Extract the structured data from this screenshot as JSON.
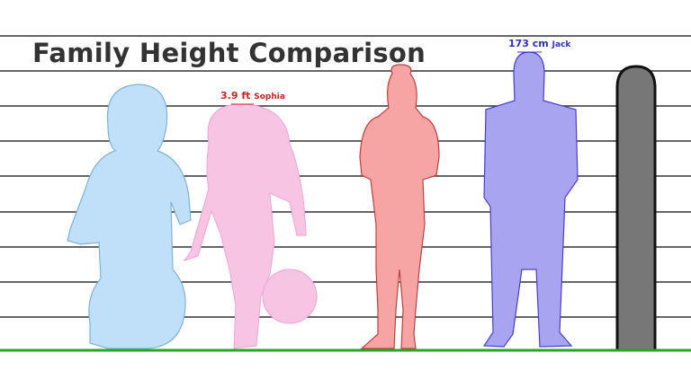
{
  "title": "Family Height Comparison",
  "figures": [
    {
      "name": "",
      "label": "",
      "color": "#bfe0f8",
      "stroke": "#7fb2de"
    },
    {
      "name": "Sophia",
      "label": "3.9 ft",
      "color": "#f7c4e4",
      "stroke": "#f0a4d4",
      "label_color": "#cc2222"
    },
    {
      "name": "",
      "label": "",
      "color": "#f7a4a4",
      "stroke": "#c04040"
    },
    {
      "name": "Jack",
      "label": "173 cm",
      "color": "#a8a4f0",
      "stroke": "#4a3fcc",
      "label_color": "#3030c0"
    },
    {
      "name": "",
      "label": "",
      "color": "#777777",
      "stroke": "#111111"
    }
  ],
  "colors": {
    "ground": "#22aa22",
    "gridline": "#333333"
  }
}
